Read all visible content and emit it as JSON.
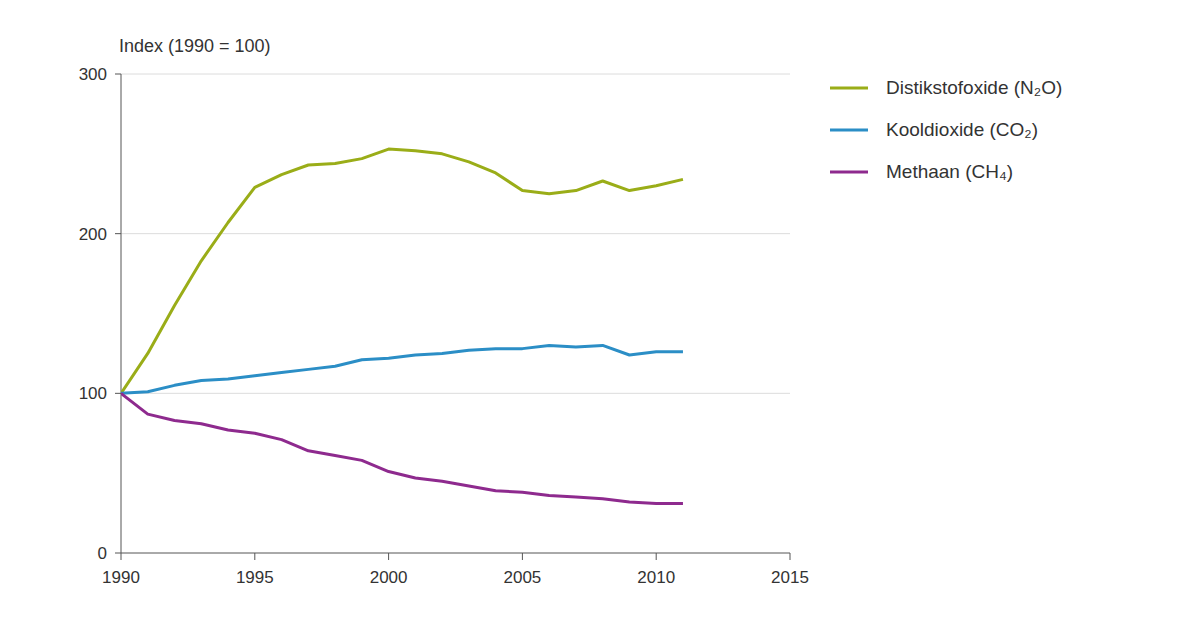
{
  "chart_data": {
    "type": "line",
    "y_label": "Index (1990 = 100)",
    "x": [
      1990,
      1991,
      1992,
      1993,
      1994,
      1995,
      1996,
      1997,
      1998,
      1999,
      2000,
      2001,
      2002,
      2003,
      2004,
      2005,
      2006,
      2007,
      2008,
      2009,
      2010,
      2011
    ],
    "series": [
      {
        "name": "Distikstofoxide (N₂O)",
        "color": "#9aad18",
        "values": [
          100,
          125,
          155,
          183,
          207,
          229,
          237,
          243,
          244,
          247,
          253,
          252,
          250,
          245,
          238,
          227,
          225,
          227,
          233,
          227,
          230,
          234
        ]
      },
      {
        "name": "Kooldioxide (CO₂)",
        "color": "#2b8ec6",
        "values": [
          100,
          101,
          105,
          108,
          109,
          111,
          113,
          115,
          117,
          121,
          122,
          124,
          125,
          127,
          128,
          128,
          130,
          129,
          130,
          124,
          126,
          126
        ]
      },
      {
        "name": "Methaan (CH₄)",
        "color": "#8e2a8e",
        "values": [
          100,
          87,
          83,
          81,
          77,
          75,
          71,
          64,
          61,
          58,
          51,
          47,
          45,
          42,
          39,
          38,
          36,
          35,
          34,
          32,
          31,
          31
        ]
      }
    ],
    "xlim": [
      1990,
      2015
    ],
    "xticks": [
      1990,
      1995,
      2000,
      2005,
      2010,
      2015
    ],
    "ylim": [
      0,
      300
    ],
    "yticks": [
      0,
      100,
      200,
      300
    ],
    "grid": true,
    "legend": "right"
  }
}
